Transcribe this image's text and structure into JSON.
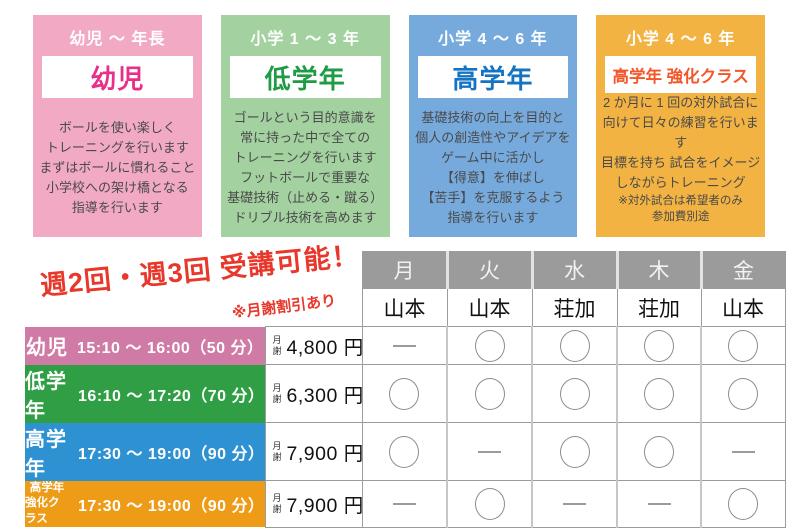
{
  "cards": [
    {
      "age": "幼児 〜 年長",
      "title": "幼児",
      "body": "ボールを使い楽しく\nトレーニングを行います\nまずはボールに慣れること\n小学校への架け橋となる\n指導を行います",
      "bg": "#f2a9c4",
      "title_color": "#e8308a"
    },
    {
      "age": "小学 1 〜 3 年",
      "title": "低学年",
      "body": "ゴールという目的意識を\n常に持った中で全ての\nトレーニングを行います\nフットボールで重要な\n基礎技術（止める・蹴る）\nドリブル技術を高めます",
      "bg": "#a3d2a0",
      "title_color": "#1f9b45"
    },
    {
      "age": "小学 4 〜 6 年",
      "title": "高学年",
      "body": "基礎技術の向上を目的と\n個人の創造性やアイデアを\nゲーム中に活かし\n【得意】を伸ばし\n【苦手】を克服するよう\n指導を行います",
      "bg": "#76aadd",
      "title_color": "#1474c4"
    },
    {
      "age": "小学 4 〜 6 年",
      "title": "高学年 強化クラス",
      "body": "2 か月に 1 回の対外試合に\n向けて日々の練習を行います\n目標を持ち 試合をイメージ\nしながらトレーニング",
      "note": "※対外試合は希望者のみ\n参加費別途",
      "bg": "#f3b342",
      "title_color": "#f4562a"
    }
  ],
  "promo": {
    "headline": "週2回・週3回 受講可能！",
    "sub": "※月謝割引あり",
    "color": "#e8372b"
  },
  "schedule": {
    "header_bg": "#9b9b9b",
    "days": [
      "月",
      "火",
      "水",
      "木",
      "金"
    ],
    "coaches": [
      "山本",
      "山本",
      "荘加",
      "荘加",
      "山本"
    ],
    "fee_unit": "月謝",
    "rows": [
      {
        "name": "幼児",
        "name_sub": "",
        "time": "15:10 〜 16:00（50 分）",
        "fee": "4,800 円",
        "color": "#d07ba6",
        "marks": [
          "—",
          "○",
          "○",
          "○",
          "○"
        ]
      },
      {
        "name": "低学年",
        "name_sub": "",
        "time": "16:10 〜 17:20（70 分）",
        "fee": "6,300 円",
        "color": "#2f9e44",
        "marks": [
          "○",
          "○",
          "○",
          "○",
          "○"
        ]
      },
      {
        "name": "高学年",
        "name_sub": "",
        "time": "17:30 〜 19:00（90 分）",
        "fee": "7,900 円",
        "color": "#2e91d2",
        "marks": [
          "○",
          "—",
          "○",
          "○",
          "—"
        ]
      },
      {
        "name": "高学年",
        "name_sub": "強化クラス",
        "time": "17:30 〜 19:00（90 分）",
        "fee": "7,900 円",
        "color": "#ee9b17",
        "marks": [
          "—",
          "○",
          "—",
          "—",
          "○"
        ]
      }
    ]
  }
}
